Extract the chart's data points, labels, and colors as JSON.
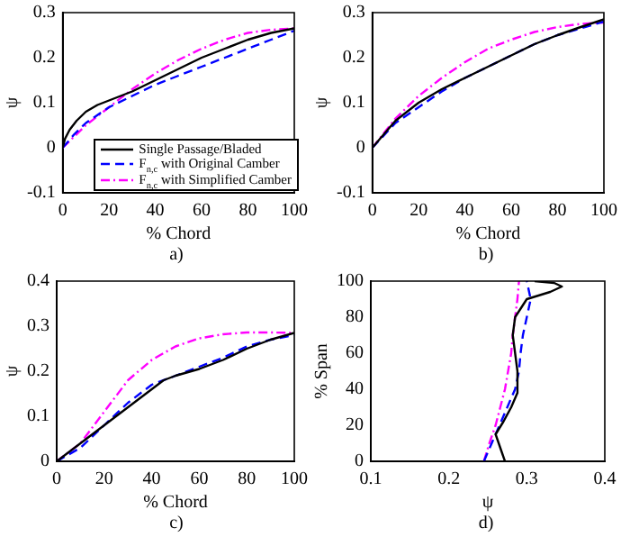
{
  "chart_data": [
    {
      "type": "line",
      "ylabel": "ψ",
      "xlabel": "% Chord",
      "annotations": [
        "a)"
      ],
      "legend": "bottom right",
      "marker": "none",
      "grid": false,
      "xlim": [
        0,
        100
      ],
      "xticks": [
        0,
        20,
        40,
        60,
        80,
        100
      ],
      "ylim": [
        -0.1,
        0.3
      ],
      "yticks": [
        -0.1,
        0,
        0.1,
        0.2,
        0.3
      ],
      "series": [
        {
          "name": "Single Passage/Bladed",
          "color": "#000000",
          "line_style": "solid",
          "x": [
            0,
            1,
            3,
            6,
            10,
            15,
            20,
            30,
            40,
            50,
            60,
            70,
            80,
            90,
            100
          ],
          "values": [
            0,
            0.02,
            0.04,
            0.06,
            0.08,
            0.095,
            0.105,
            0.125,
            0.15,
            0.175,
            0.2,
            0.22,
            0.24,
            0.255,
            0.265
          ]
        },
        {
          "name": "F$_{n,c}$ with Original Camber",
          "color": "#0000ff",
          "line_style": "dashed",
          "x": [
            0,
            5,
            10,
            20,
            30,
            40,
            50,
            60,
            70,
            80,
            90,
            100
          ],
          "values": [
            0,
            0.03,
            0.055,
            0.09,
            0.115,
            0.14,
            0.16,
            0.18,
            0.2,
            0.22,
            0.24,
            0.26
          ]
        },
        {
          "name": "F$_{n,c}$ with Simplified Camber",
          "color": "#ff00ff",
          "line_style": "dashdot",
          "x": [
            0,
            5,
            10,
            20,
            30,
            40,
            50,
            60,
            70,
            80,
            90,
            100
          ],
          "values": [
            0,
            0.025,
            0.05,
            0.09,
            0.13,
            0.165,
            0.195,
            0.22,
            0.24,
            0.255,
            0.262,
            0.265
          ]
        }
      ]
    },
    {
      "type": "line",
      "ylabel": "ψ",
      "xlabel": "% Chord",
      "annotations": [
        "b)"
      ],
      "marker": "none",
      "grid": false,
      "xlim": [
        0,
        100
      ],
      "xticks": [
        0,
        20,
        40,
        60,
        80,
        100
      ],
      "ylim": [
        -0.1,
        0.3
      ],
      "yticks": [
        -0.1,
        0,
        0.1,
        0.2,
        0.3
      ],
      "series": [
        {
          "color": "#000000",
          "line_style": "solid",
          "x": [
            0,
            5,
            10,
            20,
            30,
            40,
            50,
            60,
            70,
            80,
            90,
            100
          ],
          "values": [
            0,
            0.03,
            0.06,
            0.1,
            0.13,
            0.155,
            0.18,
            0.205,
            0.23,
            0.25,
            0.268,
            0.285
          ]
        },
        {
          "color": "#0000ff",
          "line_style": "dashed",
          "x": [
            0,
            10,
            20,
            30,
            40,
            50,
            60,
            70,
            80,
            90,
            100
          ],
          "values": [
            0,
            0.055,
            0.09,
            0.125,
            0.155,
            0.18,
            0.205,
            0.23,
            0.25,
            0.265,
            0.28
          ]
        },
        {
          "color": "#ff00ff",
          "line_style": "dashdot",
          "x": [
            0,
            10,
            20,
            30,
            40,
            50,
            60,
            70,
            80,
            90,
            100
          ],
          "values": [
            0,
            0.065,
            0.115,
            0.155,
            0.19,
            0.22,
            0.24,
            0.257,
            0.268,
            0.275,
            0.278
          ]
        }
      ]
    },
    {
      "type": "line",
      "ylabel": "ψ",
      "xlabel": "% Chord",
      "annotations": [
        "c)"
      ],
      "marker": "none",
      "grid": false,
      "xlim": [
        0,
        100
      ],
      "xticks": [
        0,
        20,
        40,
        60,
        80,
        100
      ],
      "ylim": [
        0,
        0.4
      ],
      "yticks": [
        0,
        0.1,
        0.2,
        0.3,
        0.4
      ],
      "series": [
        {
          "color": "#000000",
          "line_style": "solid",
          "x": [
            0,
            10,
            20,
            30,
            40,
            45,
            50,
            60,
            70,
            80,
            90,
            100
          ],
          "values": [
            0,
            0.04,
            0.08,
            0.12,
            0.16,
            0.18,
            0.19,
            0.205,
            0.225,
            0.25,
            0.27,
            0.285
          ]
        },
        {
          "color": "#0000ff",
          "line_style": "dashed",
          "x": [
            0,
            10,
            20,
            30,
            40,
            50,
            60,
            70,
            80,
            90,
            100
          ],
          "values": [
            0,
            0.03,
            0.08,
            0.13,
            0.17,
            0.19,
            0.21,
            0.23,
            0.255,
            0.27,
            0.28
          ]
        },
        {
          "color": "#ff00ff",
          "line_style": "dashdot",
          "x": [
            0,
            10,
            20,
            30,
            40,
            50,
            60,
            70,
            80,
            90,
            100
          ],
          "values": [
            0,
            0.04,
            0.11,
            0.18,
            0.225,
            0.255,
            0.273,
            0.282,
            0.286,
            0.286,
            0.285
          ]
        }
      ]
    },
    {
      "type": "line",
      "ylabel": "% Span",
      "xlabel": "ψ",
      "annotations": [
        "d)"
      ],
      "marker": "none",
      "grid": false,
      "xlim": [
        0.1,
        0.4
      ],
      "xticks": [
        0.1,
        0.2,
        0.3,
        0.4
      ],
      "ylim": [
        0,
        100
      ],
      "yticks": [
        0,
        20,
        40,
        60,
        80,
        100
      ],
      "series": [
        {
          "color": "#000000",
          "line_style": "solid",
          "x": [
            0.272,
            0.268,
            0.26,
            0.27,
            0.28,
            0.288,
            0.288,
            0.285,
            0.282,
            0.285,
            0.3,
            0.33,
            0.345,
            0.335,
            0.31
          ],
          "values": [
            0,
            5,
            15,
            22,
            30,
            38,
            50,
            60,
            70,
            80,
            90,
            94,
            97,
            99,
            100
          ]
        },
        {
          "color": "#0000ff",
          "line_style": "dashed",
          "x": [
            0.245,
            0.255,
            0.265,
            0.275,
            0.285,
            0.29,
            0.292,
            0.295,
            0.3,
            0.305,
            0.3
          ],
          "values": [
            0,
            10,
            20,
            30,
            40,
            50,
            60,
            70,
            80,
            90,
            100
          ]
        },
        {
          "color": "#ff00ff",
          "line_style": "dashdot",
          "x": [
            0.245,
            0.252,
            0.26,
            0.266,
            0.272,
            0.276,
            0.28,
            0.282,
            0.285,
            0.288,
            0.29
          ],
          "values": [
            0,
            10,
            20,
            30,
            40,
            50,
            60,
            70,
            80,
            90,
            100
          ]
        }
      ]
    }
  ]
}
